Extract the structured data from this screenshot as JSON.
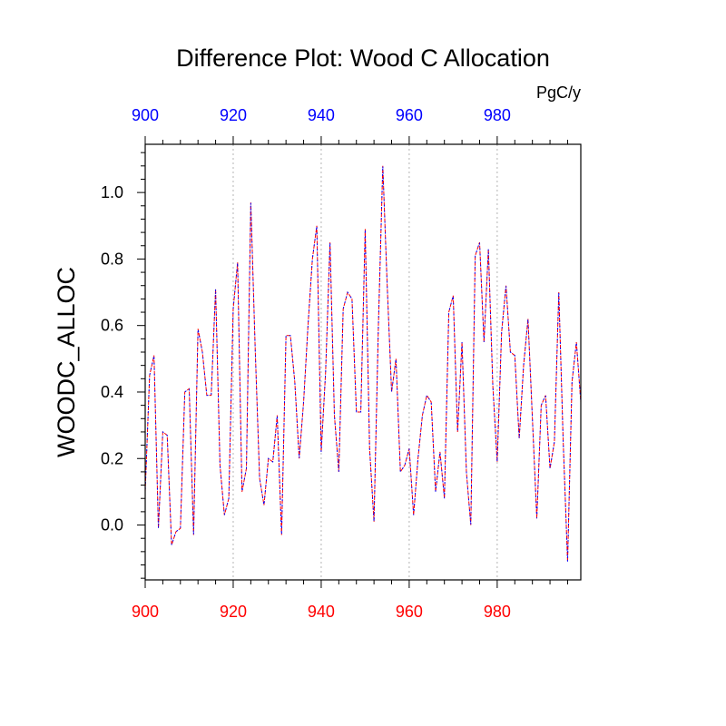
{
  "chart_data": {
    "type": "line",
    "title": "Difference Plot: Wood C Allocation",
    "units_label": "PgC/y",
    "ylabel": "WOODC_ALLOC",
    "xlabel": "",
    "xlim": [
      900,
      999
    ],
    "ylim": [
      -0.165,
      1.145
    ],
    "x_ticks": [
      900,
      920,
      940,
      960,
      980
    ],
    "x_tick_labels": [
      "900",
      "920",
      "940",
      "960",
      "980"
    ],
    "y_ticks": [
      0.0,
      0.2,
      0.4,
      0.6,
      0.8,
      1.0
    ],
    "y_tick_labels": [
      "0.0",
      "0.2",
      "0.4",
      "0.6",
      "0.8",
      "1.0"
    ],
    "vertical_grid": true,
    "x_start": 900,
    "colors": {
      "top_axis_labels": "#0000ff",
      "bottom_axis_labels": "#ff0000",
      "series_a": "#ff0000",
      "series_b": "#0000ff",
      "grid": "#b4b4b4"
    },
    "series": [
      {
        "values": [
          0.1,
          0.45,
          0.51,
          -0.01,
          0.28,
          0.27,
          -0.06,
          -0.02,
          -0.01,
          0.4,
          0.41,
          -0.03,
          0.59,
          0.52,
          0.39,
          0.39,
          0.71,
          0.18,
          0.03,
          0.08,
          0.65,
          0.79,
          0.1,
          0.17,
          0.97,
          0.53,
          0.14,
          0.06,
          0.2,
          0.19,
          0.33,
          -0.03,
          0.57,
          0.57,
          0.43,
          0.2,
          0.37,
          0.6,
          0.8,
          0.9,
          0.22,
          0.46,
          0.85,
          0.33,
          0.16,
          0.65,
          0.7,
          0.68,
          0.34,
          0.34,
          0.89,
          0.23,
          0.01,
          0.6,
          1.08,
          0.72,
          0.4,
          0.5,
          0.16,
          0.18,
          0.23,
          0.03,
          0.2,
          0.33,
          0.39,
          0.37,
          0.1,
          0.22,
          0.08,
          0.64,
          0.69,
          0.28,
          0.55,
          0.16,
          0.0,
          0.81,
          0.85,
          0.55,
          0.83,
          0.42,
          0.19,
          0.58,
          0.72,
          0.52,
          0.51,
          0.26,
          0.48,
          0.62,
          0.32,
          0.02,
          0.36,
          0.39,
          0.17,
          0.25,
          0.7,
          0.25,
          -0.11,
          0.43,
          0.55,
          0.37
        ]
      }
    ]
  }
}
